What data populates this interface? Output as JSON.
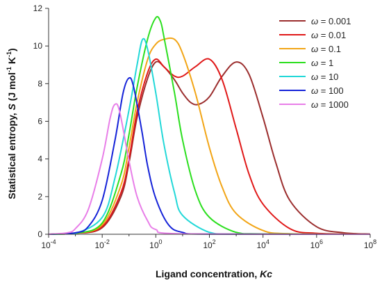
{
  "chart_data": {
    "type": "line",
    "xlabel": "Ligand concentration, ",
    "xlabel_var": "Kc",
    "ylabel": "Statistical entropy, ",
    "ylabel_var": "S",
    "ylabel_unit": " (J mol",
    "ylabel_unit_exp1": "-1",
    "ylabel_unit_mid": " K",
    "ylabel_unit_exp2": "-1",
    "ylabel_unit_end": ")",
    "x_scale": "log",
    "xlim": [
      0.0001,
      100000000
    ],
    "ylim": [
      0,
      12
    ],
    "x_ticks": [
      {
        "base": "10",
        "exp": "-4",
        "value": 0.0001
      },
      {
        "base": "10",
        "exp": "-2",
        "value": 0.01
      },
      {
        "base": "10",
        "exp": "0",
        "value": 1
      },
      {
        "base": "10",
        "exp": "2",
        "value": 100
      },
      {
        "base": "10",
        "exp": "4",
        "value": 10000
      },
      {
        "base": "10",
        "exp": "6",
        "value": 1000000
      },
      {
        "base": "10",
        "exp": "8",
        "value": 100000000
      }
    ],
    "y_ticks": [
      "0",
      "2",
      "4",
      "6",
      "8",
      "10",
      "12"
    ],
    "grid": false,
    "legend_position": "top-right",
    "legend_symbol": "ω",
    "series": [
      {
        "name": "ω = 0.001",
        "label_value": " = 0.001",
        "color": "#9b2d2d",
        "points": [
          [
            0.0001,
            0
          ],
          [
            0.001,
            0.05
          ],
          [
            0.01,
            0.35
          ],
          [
            0.05,
            2.0
          ],
          [
            0.1,
            3.8
          ],
          [
            0.2,
            6.2
          ],
          [
            0.5,
            8.3
          ],
          [
            1,
            9.15
          ],
          [
            2,
            8.9
          ],
          [
            5,
            8.2
          ],
          [
            10,
            7.5
          ],
          [
            20,
            7.0
          ],
          [
            40,
            6.9
          ],
          [
            100,
            7.3
          ],
          [
            300,
            8.4
          ],
          [
            1000,
            9.15
          ],
          [
            3000,
            8.5
          ],
          [
            10000,
            6.2
          ],
          [
            30000,
            3.8
          ],
          [
            100000,
            1.8
          ],
          [
            1000000,
            0.4
          ],
          [
            10000000,
            0.08
          ],
          [
            100000000,
            0.01
          ]
        ]
      },
      {
        "name": "ω = 0.01",
        "label_value": " = 0.01",
        "color": "#e01818",
        "points": [
          [
            0.0001,
            0
          ],
          [
            0.001,
            0.05
          ],
          [
            0.01,
            0.4
          ],
          [
            0.05,
            2.2
          ],
          [
            0.1,
            4.0
          ],
          [
            0.2,
            6.5
          ],
          [
            0.5,
            8.6
          ],
          [
            1,
            9.3
          ],
          [
            2,
            8.9
          ],
          [
            5,
            8.4
          ],
          [
            10,
            8.4
          ],
          [
            30,
            8.9
          ],
          [
            100,
            9.3
          ],
          [
            300,
            8.2
          ],
          [
            1000,
            5.6
          ],
          [
            3000,
            3.2
          ],
          [
            10000,
            1.6
          ],
          [
            100000,
            0.3
          ],
          [
            1000000,
            0.05
          ],
          [
            100000000,
            0
          ]
        ]
      },
      {
        "name": "ω = 0.1",
        "label_value": " = 0.1",
        "color": "#f2a516",
        "points": [
          [
            0.0001,
            0
          ],
          [
            0.001,
            0.05
          ],
          [
            0.01,
            0.5
          ],
          [
            0.05,
            2.6
          ],
          [
            0.1,
            4.6
          ],
          [
            0.2,
            7.0
          ],
          [
            0.5,
            9.3
          ],
          [
            1,
            10.1
          ],
          [
            2,
            10.35
          ],
          [
            5,
            10.35
          ],
          [
            10,
            9.6
          ],
          [
            30,
            7.5
          ],
          [
            100,
            4.6
          ],
          [
            300,
            2.5
          ],
          [
            1000,
            1.1
          ],
          [
            10000,
            0.2
          ],
          [
            100000,
            0.03
          ],
          [
            100000000,
            0
          ]
        ]
      },
      {
        "name": "ω = 1",
        "label_value": " = 1",
        "color": "#2bdf1e",
        "points": [
          [
            0.0001,
            0
          ],
          [
            0.001,
            0.05
          ],
          [
            0.01,
            0.6
          ],
          [
            0.05,
            3.2
          ],
          [
            0.1,
            5.3
          ],
          [
            0.2,
            7.8
          ],
          [
            0.5,
            10.4
          ],
          [
            1,
            11.5
          ],
          [
            1.5,
            11.3
          ],
          [
            2,
            10.5
          ],
          [
            5,
            7.5
          ],
          [
            10,
            5.0
          ],
          [
            30,
            2.3
          ],
          [
            100,
            0.9
          ],
          [
            1000,
            0.1
          ],
          [
            10000,
            0.02
          ],
          [
            100000000,
            0
          ]
        ]
      },
      {
        "name": "ω = 10",
        "label_value": " = 10",
        "color": "#22d8d8",
        "points": [
          [
            0.0001,
            0
          ],
          [
            0.001,
            0.05
          ],
          [
            0.01,
            0.9
          ],
          [
            0.03,
            3.0
          ],
          [
            0.1,
            6.6
          ],
          [
            0.2,
            9.0
          ],
          [
            0.32,
            10.35
          ],
          [
            0.5,
            9.8
          ],
          [
            1,
            7.5
          ],
          [
            2,
            4.8
          ],
          [
            5,
            2.2
          ],
          [
            10,
            1.0
          ],
          [
            100,
            0.1
          ],
          [
            1000,
            0.01
          ],
          [
            100000000,
            0
          ]
        ]
      },
      {
        "name": "ω = 100",
        "label_value": " = 100",
        "color": "#1422d8",
        "points": [
          [
            0.0001,
            0
          ],
          [
            0.001,
            0.08
          ],
          [
            0.003,
            0.4
          ],
          [
            0.01,
            1.8
          ],
          [
            0.03,
            5.0
          ],
          [
            0.06,
            7.5
          ],
          [
            0.1,
            8.3
          ],
          [
            0.15,
            7.8
          ],
          [
            0.3,
            5.5
          ],
          [
            0.5,
            3.6
          ],
          [
            1,
            1.9
          ],
          [
            3,
            0.5
          ],
          [
            10,
            0.1
          ],
          [
            100,
            0.01
          ],
          [
            100000000,
            0
          ]
        ]
      },
      {
        "name": "ω = 1000",
        "label_value": " = 1000",
        "color": "#e87ee8",
        "points": [
          [
            0.0001,
            0
          ],
          [
            0.0005,
            0.08
          ],
          [
            0.001,
            0.3
          ],
          [
            0.003,
            1.3
          ],
          [
            0.01,
            4.0
          ],
          [
            0.02,
            6.2
          ],
          [
            0.03,
            6.9
          ],
          [
            0.045,
            6.5
          ],
          [
            0.1,
            3.9
          ],
          [
            0.2,
            2.0
          ],
          [
            0.5,
            0.7
          ],
          [
            1,
            0.25
          ],
          [
            10,
            0.02
          ],
          [
            100000000,
            0
          ]
        ]
      }
    ]
  }
}
